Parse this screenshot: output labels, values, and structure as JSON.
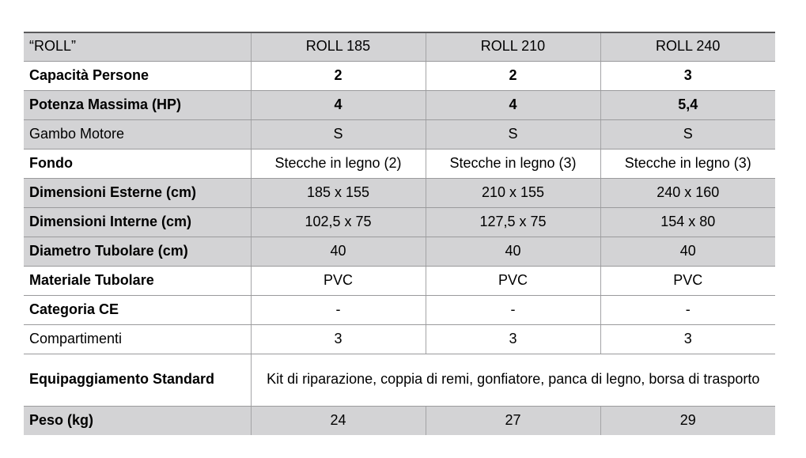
{
  "table": {
    "title_cell": "“ROLL”",
    "columns": [
      "ROLL 185",
      "ROLL 210",
      "ROLL 240"
    ],
    "rows": [
      {
        "label": "Capacità Persone",
        "values": [
          "2",
          "2",
          "3"
        ]
      },
      {
        "label": "Potenza Massima (HP)",
        "values": [
          "4",
          "4",
          "5,4"
        ]
      },
      {
        "label": "Gambo Motore",
        "values": [
          "S",
          "S",
          "S"
        ]
      },
      {
        "label": "Fondo",
        "values": [
          "Stecche in legno (2)",
          "Stecche in legno (3)",
          "Stecche in legno (3)"
        ]
      },
      {
        "label": "Dimensioni Esterne (cm)",
        "values": [
          "185 x 155",
          "210 x 155",
          "240 x 160"
        ]
      },
      {
        "label": "Dimensioni Interne (cm)",
        "values": [
          "102,5 x 75",
          "127,5 x 75",
          "154 x 80"
        ]
      },
      {
        "label": "Diametro Tubolare (cm)",
        "values": [
          "40",
          "40",
          "40"
        ]
      },
      {
        "label": "Materiale Tubolare",
        "values": [
          "PVC",
          "PVC",
          "PVC"
        ]
      },
      {
        "label": "Categoria CE",
        "values": [
          "-",
          "-",
          "-"
        ]
      },
      {
        "label": "Compartimenti",
        "values": [
          "3",
          "3",
          "3"
        ]
      },
      {
        "label": "Equipaggiamento Standard",
        "values": [
          "Kit di riparazione, coppia di remi, gonfiatore, panca di legno, borsa di trasporto"
        ]
      },
      {
        "label": "Peso (kg)",
        "values": [
          "24",
          "27",
          "29"
        ]
      }
    ],
    "colors": {
      "row_gray": "#d3d3d5",
      "grid_line": "#9a9a9c",
      "top_border": "#59595b",
      "text": "#000000"
    }
  }
}
